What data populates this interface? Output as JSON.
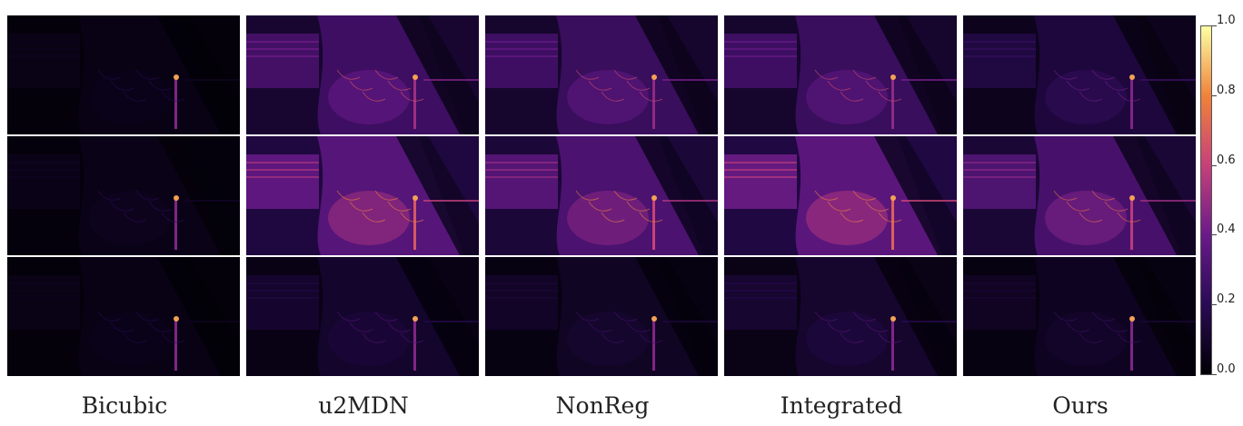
{
  "figure": {
    "columns": [
      {
        "label": "Bicubic",
        "key": "bicubic",
        "intensity": [
          0.05,
          0.06,
          0.05
        ]
      },
      {
        "label": "u2MDN",
        "key": "u2mdn",
        "intensity": [
          0.32,
          0.42,
          0.12
        ]
      },
      {
        "label": "NonReg",
        "key": "nonreg",
        "intensity": [
          0.3,
          0.38,
          0.1
        ]
      },
      {
        "label": "Integrated",
        "key": "integrated",
        "intensity": [
          0.3,
          0.44,
          0.13
        ]
      },
      {
        "label": "Ours",
        "key": "ours",
        "intensity": [
          0.18,
          0.36,
          0.09
        ]
      }
    ],
    "rows": 3,
    "colormap": "inferno",
    "colorbar": {
      "min": 0.0,
      "max": 1.0,
      "ticks": [
        {
          "value": 0.0,
          "label": "0.0"
        },
        {
          "value": 0.2,
          "label": "0.2"
        },
        {
          "value": 0.4,
          "label": "0.4"
        },
        {
          "value": 0.6,
          "label": "0.6"
        },
        {
          "value": 0.8,
          "label": "0.8"
        },
        {
          "value": 1.0,
          "label": "1.0"
        }
      ]
    },
    "colors": {
      "cmap_0": "#000004",
      "cmap_1": "#2a0b54",
      "cmap_2": "#6a1a8a",
      "cmap_3": "#c6407a",
      "cmap_4": "#f0823a",
      "cmap_5": "#fcffa4"
    }
  }
}
